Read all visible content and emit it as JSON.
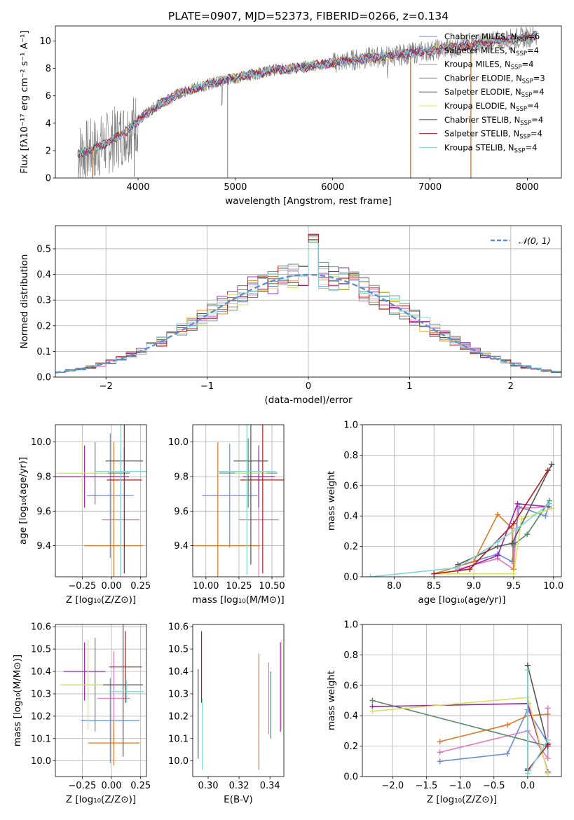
{
  "figure": {
    "title": "PLATE=0907, MJD=52373, FIBERID=0266, z=0.134"
  },
  "models": [
    {
      "name": "Chabrier MILES",
      "nssp": "6",
      "color": "#6b8bde"
    },
    {
      "name": "Salpeter MILES",
      "nssp": "4",
      "color": "#e377c2"
    },
    {
      "name": "Kroupa MILES",
      "nssp": "4",
      "color": "#df7a26"
    },
    {
      "name": "Chabrier ELODIE",
      "nssp": "3",
      "color": "#5b8a6b"
    },
    {
      "name": "Salpeter ELODIE",
      "nssp": "4",
      "color": "#9a24a8"
    },
    {
      "name": "Kroupa ELODIE",
      "nssp": "4",
      "color": "#d7e35a"
    },
    {
      "name": "Chabrier STELIB",
      "nssp": "4",
      "color": "#555555"
    },
    {
      "name": "Salpeter STELIB",
      "nssp": "4",
      "color": "#b31b1b"
    },
    {
      "name": "Kroupa STELIB",
      "nssp": "4",
      "color": "#7dd8d8"
    }
  ],
  "chart_data": [
    {
      "type": "line",
      "id": "spectrum",
      "xlabel": "wavelength [Angstrom, rest frame]",
      "ylabel": "Flux [f_λ 10^-17 erg cm^-2 s^-1 A^-1]",
      "xlim": [
        3150,
        8350
      ],
      "ylim": [
        0,
        11.1
      ],
      "xticks": [
        4000,
        5000,
        6000,
        7000,
        8000
      ],
      "yticks": [
        0,
        2,
        4,
        6,
        8,
        10
      ],
      "data_color": "#808080",
      "continuum": {
        "x": [
          3380,
          3500,
          3700,
          3900,
          4050,
          4200,
          4400,
          4600,
          4800,
          5000,
          5200,
          5400,
          5600,
          5800,
          6000,
          6200,
          6400,
          6600,
          6800,
          7000,
          7200,
          7400,
          7600,
          7800,
          8000,
          8100
        ],
        "y": [
          1.8,
          2.0,
          2.6,
          3.5,
          4.5,
          5.3,
          6.1,
          6.6,
          7.0,
          7.3,
          7.6,
          7.9,
          8.0,
          8.2,
          8.4,
          8.6,
          8.8,
          8.9,
          9.1,
          9.3,
          9.5,
          9.7,
          9.9,
          10.1,
          10.3,
          10.4
        ]
      },
      "legend_position": "upper right"
    },
    {
      "type": "bar",
      "id": "residual-histogram",
      "xlabel": "(data-model)/error",
      "ylabel": "Normed distribution",
      "xlim": [
        -2.5,
        2.5
      ],
      "ylim": [
        0,
        0.59
      ],
      "xticks": [
        -2,
        -1,
        0,
        1,
        2
      ],
      "yticks": [
        0.0,
        0.1,
        0.2,
        0.3,
        0.4,
        0.5
      ],
      "reference_curve": "normal(0,1)",
      "reference_color": "#5b8fd6",
      "legend_label": "𝒩(0, 1)",
      "grid": true
    },
    {
      "type": "scatter",
      "id": "age-vs-Z",
      "xlabel": "Z [log10(Z/Z⊙)]",
      "ylabel": "age [log10(age/yr)]",
      "xlim": [
        -0.48,
        0.3
      ],
      "ylim": [
        9.22,
        10.1
      ],
      "xticks": [
        -0.25,
        0.0,
        0.25
      ],
      "yticks": [
        9.4,
        9.6,
        9.8,
        10.0
      ],
      "grid": true,
      "points": [
        {
          "x": -0.01,
          "y": 9.69,
          "xerr": 0.2,
          "yerr": 0.36,
          "model": 0
        },
        {
          "x": 0.08,
          "y": 9.55,
          "xerr": 0.16,
          "yerr": 0.4,
          "model": 1
        },
        {
          "x": 0.02,
          "y": 9.4,
          "xerr": 0.25,
          "yerr": 0.6,
          "model": 2
        },
        {
          "x": -0.14,
          "y": 9.82,
          "xerr": 0.3,
          "yerr": 0.18,
          "model": 3
        },
        {
          "x": -0.23,
          "y": 9.8,
          "xerr": 0.38,
          "yerr": 0.18,
          "model": 4
        },
        {
          "x": -0.25,
          "y": 9.82,
          "xerr": 0.22,
          "yerr": 0.2,
          "model": 5
        },
        {
          "x": 0.11,
          "y": 9.89,
          "xerr": 0.16,
          "yerr": 0.08,
          "model": 6
        },
        {
          "x": 0.11,
          "y": 9.78,
          "xerr": 0.15,
          "yerr": 0.54,
          "model": 7
        },
        {
          "x": 0.08,
          "y": 9.83,
          "xerr": 0.22,
          "yerr": 0.6,
          "model": 8
        }
      ]
    },
    {
      "type": "scatter",
      "id": "age-vs-mass",
      "xlabel": "mass [log10(M/M⊙)]",
      "ylabel": "",
      "xlim": [
        9.9,
        10.59
      ],
      "ylim": [
        9.22,
        10.1
      ],
      "xticks": [
        10.0,
        10.25,
        10.5
      ],
      "yticks": [
        9.4,
        9.6,
        9.8,
        10.0
      ],
      "grid": true,
      "points": [
        {
          "x": 10.18,
          "y": 9.69,
          "xerr": 0.21,
          "yerr": 0.3,
          "model": 0
        },
        {
          "x": 10.4,
          "y": 9.55,
          "xerr": 0.15,
          "yerr": 0.4,
          "model": 1
        },
        {
          "x": 10.09,
          "y": 9.4,
          "xerr": 0.32,
          "yerr": 0.6,
          "model": 2
        },
        {
          "x": 10.32,
          "y": 9.82,
          "xerr": 0.22,
          "yerr": 0.2,
          "model": 3
        },
        {
          "x": 10.4,
          "y": 9.8,
          "xerr": 0.12,
          "yerr": 0.18,
          "model": 4
        },
        {
          "x": 10.34,
          "y": 9.82,
          "xerr": 0.12,
          "yerr": 0.18,
          "model": 5
        },
        {
          "x": 10.34,
          "y": 9.89,
          "xerr": 0.13,
          "yerr": 0.6,
          "model": 6
        },
        {
          "x": 10.43,
          "y": 9.78,
          "xerr": 0.17,
          "yerr": 0.54,
          "model": 7
        },
        {
          "x": 10.31,
          "y": 9.83,
          "xerr": 0.22,
          "yerr": 0.6,
          "model": 8
        }
      ]
    },
    {
      "type": "line",
      "id": "mass-weight-vs-age",
      "xlabel": "age [log10(age/yr)]",
      "ylabel": "mass weight",
      "xlim": [
        7.6,
        10.1
      ],
      "ylim": [
        0,
        1.0
      ],
      "xticks": [
        8.0,
        8.5,
        9.0,
        9.5,
        10.0
      ],
      "yticks": [
        0.0,
        0.2,
        0.4,
        0.6,
        0.8,
        1.0
      ],
      "grid": true,
      "series": [
        {
          "model": 0,
          "x": [
            8.8,
            9.3,
            9.48,
            9.57,
            9.9,
            9.95
          ],
          "y": [
            0.07,
            0.15,
            0.1,
            0.46,
            0.4,
            0.48
          ]
        },
        {
          "model": 1,
          "x": [
            8.8,
            9.3,
            9.5,
            9.55,
            9.93
          ],
          "y": [
            0.05,
            0.12,
            0.05,
            0.45,
            0.46
          ]
        },
        {
          "model": 2,
          "x": [
            8.5,
            9.0,
            9.3,
            9.48,
            9.5
          ],
          "y": [
            0.02,
            0.1,
            0.41,
            0.32,
            0.05
          ]
        },
        {
          "model": 3,
          "x": [
            9.5,
            9.67,
            9.95
          ],
          "y": [
            0.21,
            0.28,
            0.5
          ]
        },
        {
          "model": 4,
          "x": [
            8.8,
            9.3,
            9.55,
            9.95
          ],
          "y": [
            0.04,
            0.14,
            0.48,
            0.46
          ]
        },
        {
          "model": 5,
          "x": [
            8.5,
            9.5,
            9.6,
            9.98
          ],
          "y": [
            0.02,
            0.02,
            0.38,
            0.45
          ]
        },
        {
          "model": 6,
          "x": [
            8.8,
            9.3,
            9.48,
            9.98
          ],
          "y": [
            0.08,
            0.2,
            0.22,
            0.74
          ]
        },
        {
          "model": 7,
          "x": [
            8.5,
            8.95,
            9.5,
            9.93
          ],
          "y": [
            0.02,
            0.05,
            0.35,
            0.7
          ]
        },
        {
          "model": 8,
          "x": [
            7.7,
            8.8,
            9.3,
            9.55,
            9.95
          ],
          "y": [
            0.0,
            0.06,
            0.23,
            0.32,
            0.48
          ]
        }
      ]
    },
    {
      "type": "scatter",
      "id": "mass-vs-Z",
      "xlabel": "Z [log10(Z/Z⊙)]",
      "ylabel": "mass [log10(M/M⊙)]",
      "xlim": [
        -0.48,
        0.3
      ],
      "ylim": [
        9.93,
        10.61
      ],
      "xticks": [
        -0.25,
        0.0,
        0.25
      ],
      "yticks": [
        10.0,
        10.1,
        10.2,
        10.3,
        10.4,
        10.5,
        10.6
      ],
      "grid": true,
      "points": [
        {
          "x": -0.01,
          "y": 10.18,
          "xerr": 0.25,
          "yerr": 0.19,
          "model": 0
        },
        {
          "x": 0.02,
          "y": 10.28,
          "xerr": 0.14,
          "yerr": 0.21,
          "model": 1
        },
        {
          "x": 0.02,
          "y": 10.08,
          "xerr": 0.22,
          "yerr": 0.1,
          "model": 2
        },
        {
          "x": -0.14,
          "y": 10.34,
          "xerr": 0.28,
          "yerr": 0.21,
          "model": 3
        },
        {
          "x": -0.23,
          "y": 10.4,
          "xerr": 0.18,
          "yerr": 0.13,
          "model": 4
        },
        {
          "x": -0.2,
          "y": 10.34,
          "xerr": 0.24,
          "yerr": 0.2,
          "model": 5
        },
        {
          "x": 0.1,
          "y": 10.34,
          "xerr": 0.17,
          "yerr": 0.32,
          "model": 6
        },
        {
          "x": 0.12,
          "y": 10.42,
          "xerr": 0.14,
          "yerr": 0.16,
          "model": 7
        },
        {
          "x": 0.13,
          "y": 10.31,
          "xerr": 0.15,
          "yerr": 0.05,
          "model": 8
        }
      ]
    },
    {
      "type": "scatter",
      "id": "mass-vs-ebv",
      "xlabel": "E(B-V)",
      "ylabel": "",
      "xlim": [
        0.29,
        0.349
      ],
      "ylim": [
        9.93,
        10.61
      ],
      "xticks": [
        0.3,
        0.32,
        0.34
      ],
      "yticks": [
        10.0,
        10.1,
        10.2,
        10.3,
        10.4,
        10.5,
        10.6
      ],
      "grid": false,
      "points": [
        {
          "x": 0.2935,
          "y": 10.21,
          "yerr": 0.2,
          "model": 6
        },
        {
          "x": 0.2957,
          "y": 10.42,
          "yerr": 0.16,
          "model": 7
        },
        {
          "x": 0.2962,
          "y": 10.12,
          "yerr": 0.16,
          "model": 8
        },
        {
          "x": 0.3328,
          "y": 10.22,
          "yerr": 0.26,
          "model": 2
        },
        {
          "x": 0.3392,
          "y": 10.28,
          "yerr": 0.16,
          "model": 1
        },
        {
          "x": 0.3405,
          "y": 10.25,
          "yerr": 0.15,
          "model": 3
        },
        {
          "x": 0.3468,
          "y": 10.33,
          "yerr": 0.2,
          "model": 4
        },
        {
          "x": 0.3475,
          "y": 10.34,
          "yerr": 0.2,
          "model": 5
        }
      ]
    },
    {
      "type": "line",
      "id": "mass-weight-vs-Z",
      "xlabel": "Z [log10(Z/Z⊙)]",
      "ylabel": "mass weight",
      "xlim": [
        -2.45,
        0.5
      ],
      "ylim": [
        0,
        1.0
      ],
      "xticks": [
        -2.0,
        -1.5,
        -1.0,
        -0.5,
        0.0
      ],
      "yticks": [
        0.0,
        0.2,
        0.4,
        0.6,
        0.8,
        1.0
      ],
      "grid": true,
      "series": [
        {
          "model": 0,
          "x": [
            -1.3,
            -0.3,
            0.0,
            0.3
          ],
          "y": [
            0.1,
            0.15,
            0.44,
            0.22
          ]
        },
        {
          "model": 1,
          "x": [
            -1.3,
            0.0,
            0.3,
            0.3
          ],
          "y": [
            0.16,
            0.3,
            0.12,
            0.45
          ]
        },
        {
          "model": 2,
          "x": [
            -1.3,
            -0.3,
            0.0,
            0.3
          ],
          "y": [
            0.23,
            0.34,
            0.4,
            0.41
          ]
        },
        {
          "model": 3,
          "x": [
            -2.3,
            0.3
          ],
          "y": [
            0.5,
            0.2
          ]
        },
        {
          "model": 4,
          "x": [
            -2.3,
            0.0,
            0.3
          ],
          "y": [
            0.46,
            0.48,
            0.03
          ]
        },
        {
          "model": 5,
          "x": [
            -2.3,
            0.0,
            0.3
          ],
          "y": [
            0.43,
            0.52,
            0.02
          ]
        },
        {
          "model": 6,
          "x": [
            0.0,
            0.0,
            0.3
          ],
          "y": [
            0.05,
            0.73,
            0.2
          ]
        },
        {
          "model": 7,
          "x": [
            0.0,
            0.3
          ],
          "y": [
            0.04,
            0.21
          ]
        },
        {
          "model": 8,
          "x": [
            0.0,
            0.0,
            0.3
          ],
          "y": [
            0.7,
            0.02,
            0.24
          ]
        }
      ]
    }
  ]
}
